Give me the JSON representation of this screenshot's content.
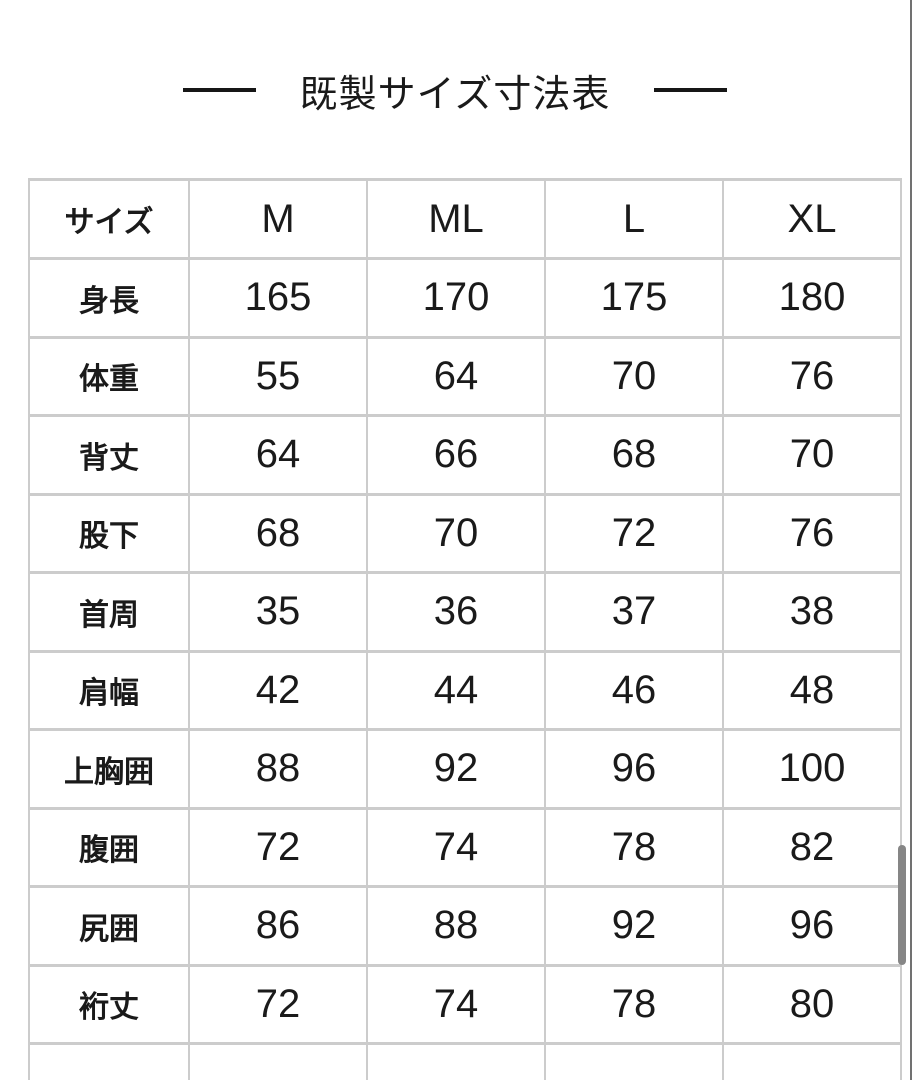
{
  "chart_data": {
    "type": "table",
    "title": "既製サイズ寸法表",
    "columns": [
      "サイズ",
      "M",
      "ML",
      "L",
      "XL"
    ],
    "rows": [
      {
        "label": "身長",
        "values": [
          "165",
          "170",
          "175",
          "180"
        ]
      },
      {
        "label": "体重",
        "values": [
          "55",
          "64",
          "70",
          "76"
        ]
      },
      {
        "label": "背丈",
        "values": [
          "64",
          "66",
          "68",
          "70"
        ]
      },
      {
        "label": "股下",
        "values": [
          "68",
          "70",
          "72",
          "76"
        ]
      },
      {
        "label": "首周",
        "values": [
          "35",
          "36",
          "37",
          "38"
        ]
      },
      {
        "label": "肩幅",
        "values": [
          "42",
          "44",
          "46",
          "48"
        ]
      },
      {
        "label": "上胸囲",
        "values": [
          "88",
          "92",
          "96",
          "100"
        ]
      },
      {
        "label": "腹囲",
        "values": [
          "72",
          "74",
          "78",
          "82"
        ]
      },
      {
        "label": "尻囲",
        "values": [
          "86",
          "88",
          "92",
          "96"
        ]
      },
      {
        "label": "裄丈",
        "values": [
          "72",
          "74",
          "78",
          "80"
        ]
      }
    ]
  },
  "ui": {
    "border_color": "#cccccc",
    "text_color": "#1a1a1a",
    "title_dash_color": "#161616",
    "scrollbar_color": "#868686",
    "edge_line_color": "#717171"
  }
}
